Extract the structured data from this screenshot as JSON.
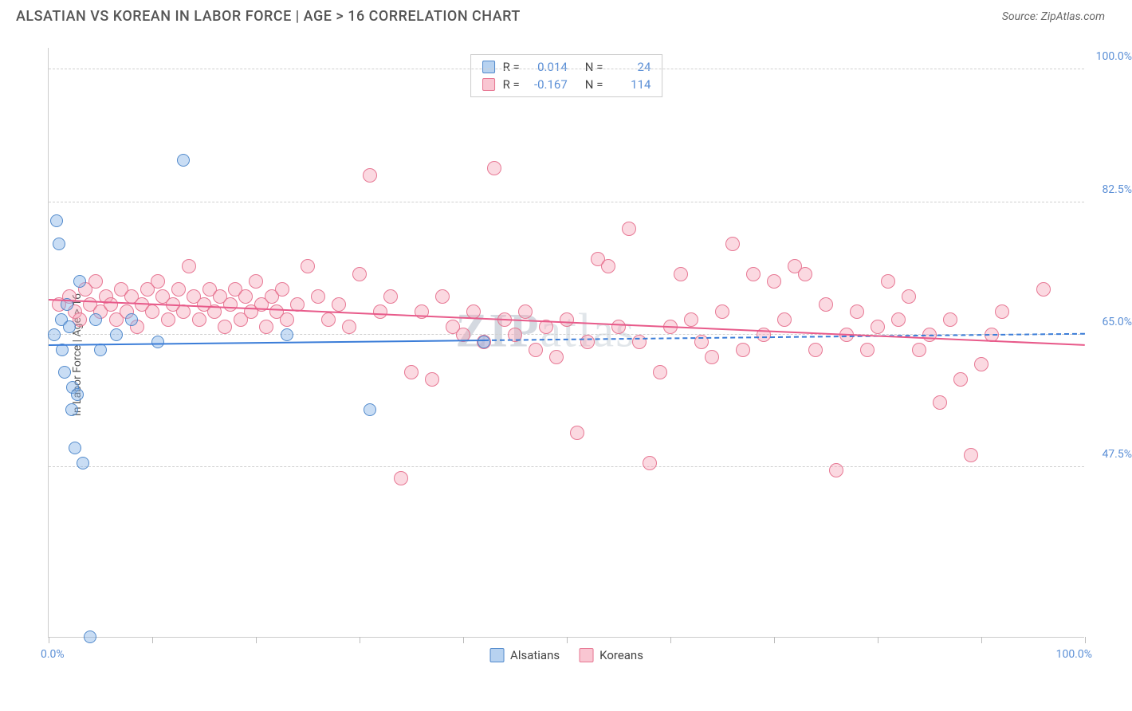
{
  "header": {
    "title": "ALSATIAN VS KOREAN IN LABOR FORCE | AGE > 16 CORRELATION CHART",
    "source": "Source: ZipAtlas.com"
  },
  "chart": {
    "type": "scatter",
    "watermark": "ZIPatlas",
    "y_axis": {
      "label": "In Labor Force | Age > 16",
      "min": 25,
      "max": 103,
      "ticks": [
        47.5,
        65.0,
        82.5,
        100.0
      ],
      "tick_labels": [
        "47.5%",
        "65.0%",
        "82.5%",
        "100.0%"
      ],
      "label_color": "#555555",
      "tick_color": "#5b8fd6",
      "tick_fontsize": 14
    },
    "x_axis": {
      "min": 0,
      "max": 100,
      "ticks": [
        0,
        10,
        20,
        30,
        40,
        50,
        60,
        70,
        80,
        90,
        100
      ],
      "left_label": "0.0%",
      "right_label": "100.0%",
      "tick_color": "#5b8fd6"
    },
    "grid_color": "#d0d0d0",
    "background_color": "#ffffff",
    "correlation_box": {
      "rows": [
        {
          "swatch": "blue",
          "r_label": "R =",
          "r_value": "0.014",
          "n_label": "N =",
          "n_value": "24"
        },
        {
          "swatch": "pink",
          "r_label": "R =",
          "r_value": "-0.167",
          "n_label": "N =",
          "n_value": "114"
        }
      ]
    },
    "bottom_legend": [
      {
        "swatch": "blue",
        "label": "Alsatians"
      },
      {
        "swatch": "pink",
        "label": "Koreans"
      }
    ],
    "series": {
      "alsatians": {
        "color_fill": "rgba(135,180,230,0.45)",
        "color_stroke": "rgba(70,130,200,0.9)",
        "marker_size": 16,
        "points": [
          [
            0.5,
            65
          ],
          [
            0.8,
            80
          ],
          [
            1.0,
            77
          ],
          [
            1.2,
            67
          ],
          [
            1.3,
            63
          ],
          [
            1.5,
            60
          ],
          [
            1.8,
            69
          ],
          [
            2.0,
            66
          ],
          [
            2.2,
            55
          ],
          [
            2.3,
            58
          ],
          [
            2.5,
            50
          ],
          [
            2.8,
            57
          ],
          [
            3.0,
            72
          ],
          [
            3.3,
            48
          ],
          [
            4.0,
            25
          ],
          [
            4.5,
            67
          ],
          [
            5.0,
            63
          ],
          [
            6.5,
            65
          ],
          [
            8.0,
            67
          ],
          [
            10.5,
            64
          ],
          [
            13,
            88
          ],
          [
            23,
            65
          ],
          [
            31,
            55
          ],
          [
            42,
            64
          ]
        ],
        "trend": {
          "x1": 0,
          "y1": 63.5,
          "x2": 100,
          "y2": 65.0,
          "solid_until": 42,
          "color": "#3b7dd8",
          "width": 2
        }
      },
      "koreans": {
        "color_fill": "rgba(245,160,180,0.4)",
        "color_stroke": "rgba(230,110,140,0.9)",
        "marker_size": 18,
        "points": [
          [
            1,
            69
          ],
          [
            2,
            70
          ],
          [
            2.5,
            68
          ],
          [
            3,
            67
          ],
          [
            3.5,
            71
          ],
          [
            4,
            69
          ],
          [
            4.5,
            72
          ],
          [
            5,
            68
          ],
          [
            5.5,
            70
          ],
          [
            6,
            69
          ],
          [
            6.5,
            67
          ],
          [
            7,
            71
          ],
          [
            7.5,
            68
          ],
          [
            8,
            70
          ],
          [
            8.5,
            66
          ],
          [
            9,
            69
          ],
          [
            9.5,
            71
          ],
          [
            10,
            68
          ],
          [
            10.5,
            72
          ],
          [
            11,
            70
          ],
          [
            11.5,
            67
          ],
          [
            12,
            69
          ],
          [
            12.5,
            71
          ],
          [
            13,
            68
          ],
          [
            13.5,
            74
          ],
          [
            14,
            70
          ],
          [
            14.5,
            67
          ],
          [
            15,
            69
          ],
          [
            15.5,
            71
          ],
          [
            16,
            68
          ],
          [
            16.5,
            70
          ],
          [
            17,
            66
          ],
          [
            17.5,
            69
          ],
          [
            18,
            71
          ],
          [
            18.5,
            67
          ],
          [
            19,
            70
          ],
          [
            19.5,
            68
          ],
          [
            20,
            72
          ],
          [
            20.5,
            69
          ],
          [
            21,
            66
          ],
          [
            21.5,
            70
          ],
          [
            22,
            68
          ],
          [
            22.5,
            71
          ],
          [
            23,
            67
          ],
          [
            24,
            69
          ],
          [
            25,
            74
          ],
          [
            26,
            70
          ],
          [
            27,
            67
          ],
          [
            28,
            69
          ],
          [
            29,
            66
          ],
          [
            30,
            73
          ],
          [
            31,
            86
          ],
          [
            32,
            68
          ],
          [
            33,
            70
          ],
          [
            34,
            46
          ],
          [
            35,
            60
          ],
          [
            36,
            68
          ],
          [
            37,
            59
          ],
          [
            38,
            70
          ],
          [
            39,
            66
          ],
          [
            40,
            65
          ],
          [
            41,
            68
          ],
          [
            42,
            64
          ],
          [
            43,
            87
          ],
          [
            44,
            67
          ],
          [
            45,
            65
          ],
          [
            46,
            68
          ],
          [
            47,
            63
          ],
          [
            48,
            66
          ],
          [
            49,
            62
          ],
          [
            50,
            67
          ],
          [
            51,
            52
          ],
          [
            52,
            64
          ],
          [
            53,
            75
          ],
          [
            54,
            74
          ],
          [
            55,
            66
          ],
          [
            56,
            79
          ],
          [
            57,
            64
          ],
          [
            58,
            48
          ],
          [
            59,
            60
          ],
          [
            60,
            66
          ],
          [
            61,
            73
          ],
          [
            62,
            67
          ],
          [
            63,
            64
          ],
          [
            64,
            62
          ],
          [
            65,
            68
          ],
          [
            66,
            77
          ],
          [
            67,
            63
          ],
          [
            68,
            73
          ],
          [
            69,
            65
          ],
          [
            70,
            72
          ],
          [
            71,
            67
          ],
          [
            72,
            74
          ],
          [
            73,
            73
          ],
          [
            74,
            63
          ],
          [
            75,
            69
          ],
          [
            76,
            47
          ],
          [
            77,
            65
          ],
          [
            78,
            68
          ],
          [
            79,
            63
          ],
          [
            80,
            66
          ],
          [
            81,
            72
          ],
          [
            82,
            67
          ],
          [
            83,
            70
          ],
          [
            84,
            63
          ],
          [
            85,
            65
          ],
          [
            86,
            56
          ],
          [
            87,
            67
          ],
          [
            88,
            59
          ],
          [
            89,
            49
          ],
          [
            90,
            61
          ],
          [
            91,
            65
          ],
          [
            92,
            68
          ],
          [
            96,
            71
          ]
        ],
        "trend": {
          "x1": 0,
          "y1": 69.5,
          "x2": 100,
          "y2": 63.5,
          "color": "#e85a8a",
          "width": 2
        }
      }
    }
  }
}
